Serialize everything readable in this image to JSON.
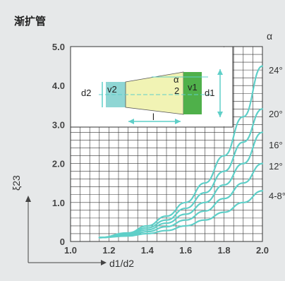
{
  "title": "渐扩管",
  "chart_data": {
    "type": "line",
    "xlabel": "d1/d2",
    "ylabel": "ξ23",
    "xlim": [
      1.0,
      2.0
    ],
    "ylim": [
      0,
      5.0
    ],
    "x_ticks": [
      "1.0",
      "1.2",
      "1.4",
      "1.6",
      "1.8",
      "2.0"
    ],
    "y_ticks": [
      "0",
      "1.0",
      "2.0",
      "3.0",
      "4.0",
      "5.0"
    ],
    "legend_title": "α",
    "grid": true,
    "series": [
      {
        "name": "24°",
        "x": [
          1.15,
          1.3,
          1.4,
          1.5,
          1.6,
          1.7,
          1.8,
          1.9,
          2.0
        ],
        "y": [
          0.1,
          0.22,
          0.4,
          0.65,
          1.0,
          1.5,
          2.2,
          3.2,
          4.5
        ]
      },
      {
        "name": "20°",
        "x": [
          1.15,
          1.3,
          1.4,
          1.5,
          1.6,
          1.7,
          1.8,
          1.9,
          2.0
        ],
        "y": [
          0.1,
          0.2,
          0.35,
          0.55,
          0.85,
          1.25,
          1.8,
          2.55,
          3.4
        ]
      },
      {
        "name": "16°",
        "x": [
          1.15,
          1.3,
          1.4,
          1.5,
          1.6,
          1.7,
          1.8,
          1.9,
          2.0
        ],
        "y": [
          0.1,
          0.18,
          0.3,
          0.47,
          0.7,
          1.0,
          1.45,
          2.0,
          2.8
        ]
      },
      {
        "name": "12°",
        "x": [
          1.15,
          1.3,
          1.4,
          1.5,
          1.6,
          1.7,
          1.8,
          1.9,
          2.0
        ],
        "y": [
          0.1,
          0.16,
          0.25,
          0.38,
          0.55,
          0.78,
          1.1,
          1.5,
          2.0
        ]
      },
      {
        "name": "4-8°",
        "x": [
          1.15,
          1.3,
          1.4,
          1.5,
          1.6,
          1.7,
          1.8,
          1.9,
          2.0
        ],
        "y": [
          0.1,
          0.14,
          0.2,
          0.28,
          0.4,
          0.55,
          0.75,
          1.0,
          1.3
        ]
      }
    ]
  },
  "diagram": {
    "v2": "v2",
    "v1": "v1",
    "d2": "d2",
    "d1": "d1",
    "alpha": "α",
    "two": "2",
    "length": "l"
  }
}
